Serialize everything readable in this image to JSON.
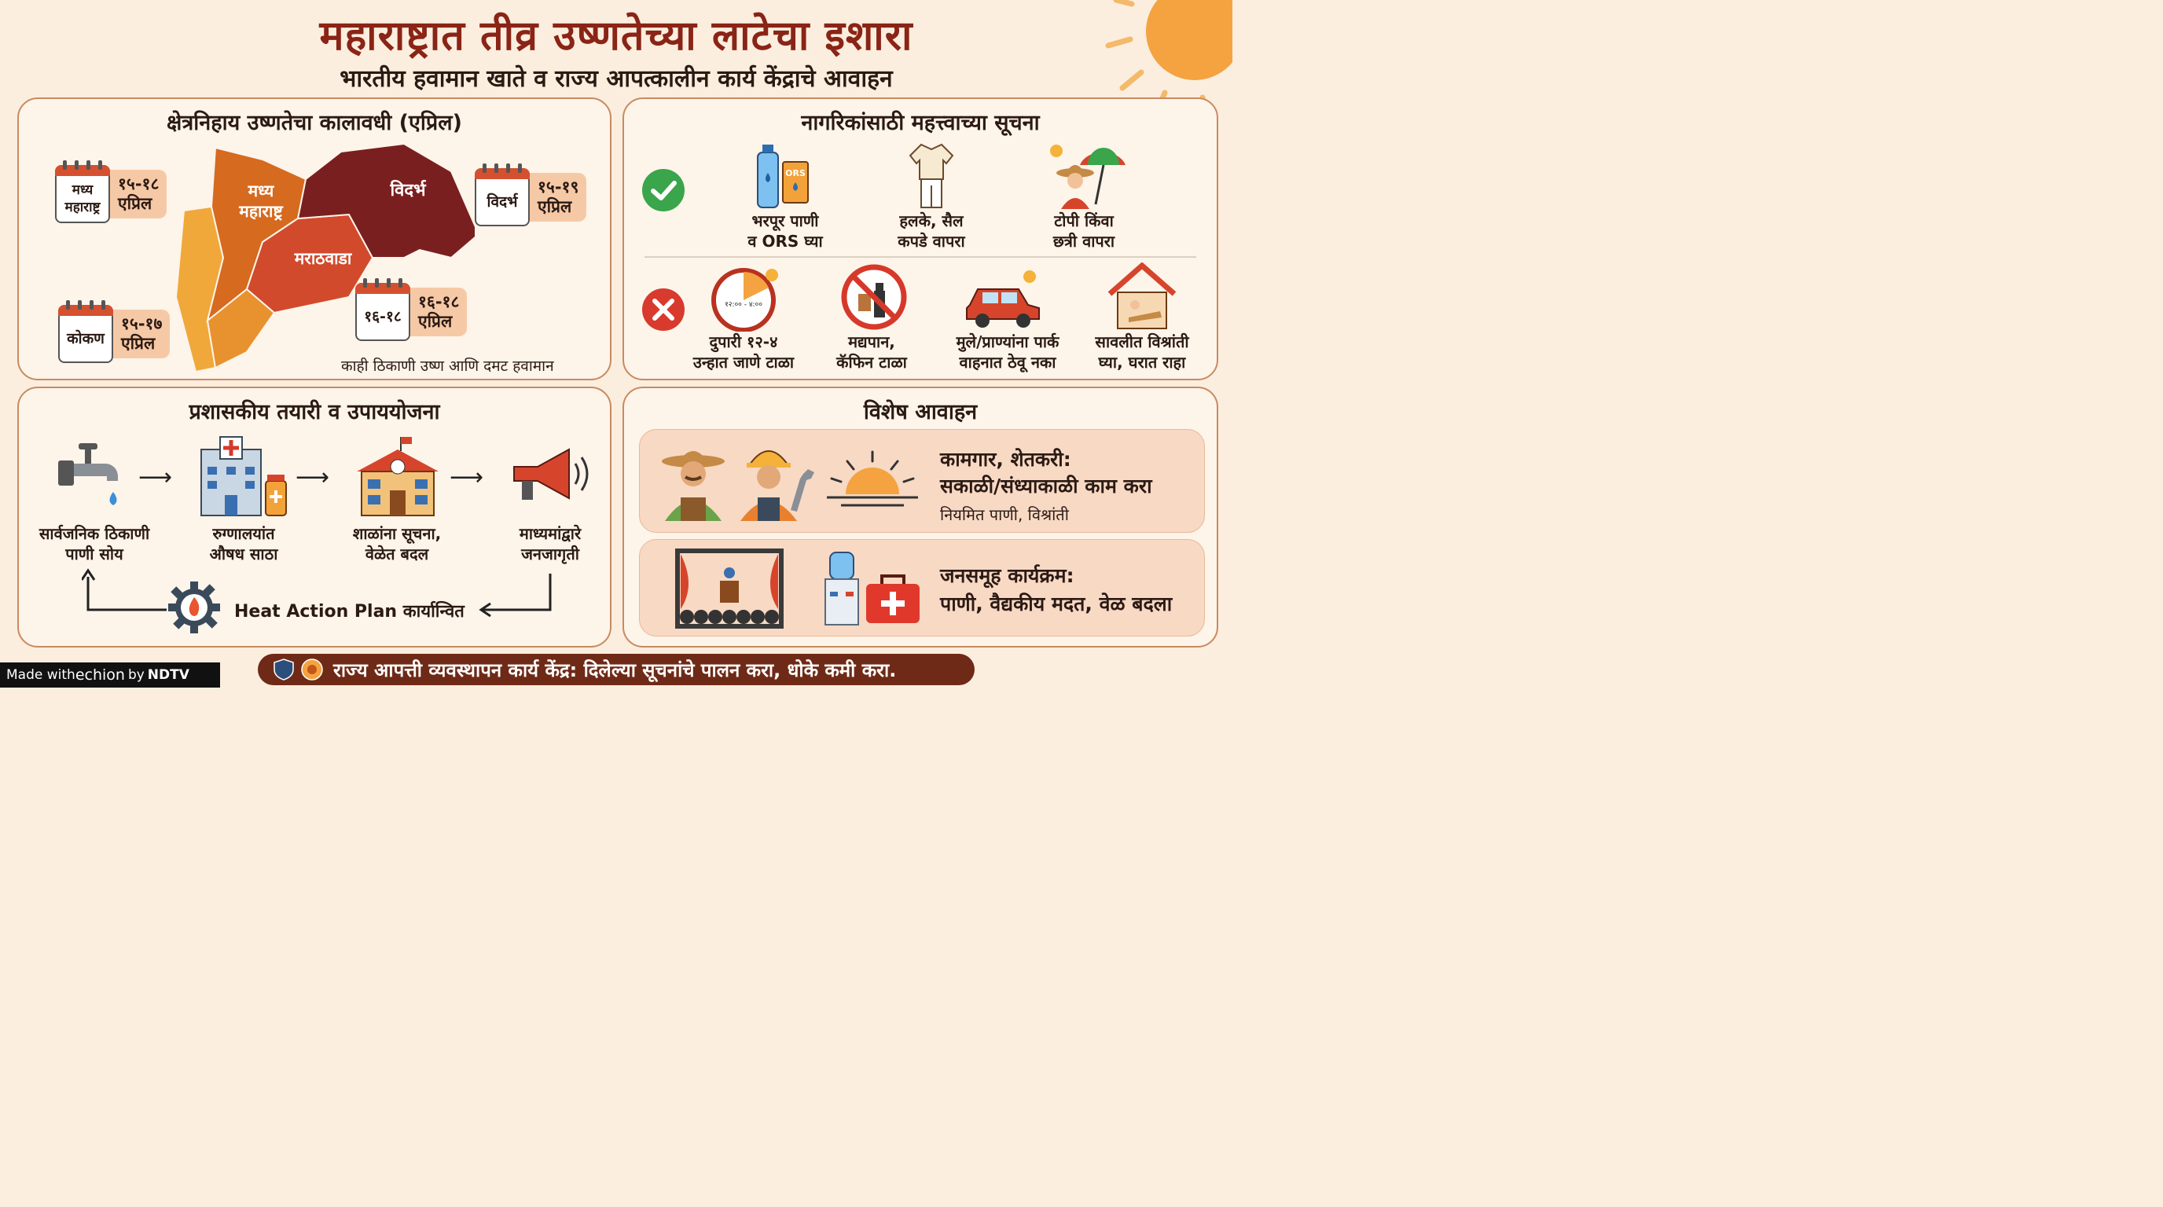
{
  "header": {
    "title": "महाराष्ट्रात तीव्र उष्णतेच्या लाटेचा इशारा",
    "subtitle": "भारतीय हवामान खाते व राज्य आपत्कालीन कार्य केंद्राचे आवाहन"
  },
  "regions_panel": {
    "heading": "क्षेत्रनिहाय उष्णतेचा कालावधी (एप्रिल)",
    "map_labels": {
      "madhya": "मध्य\nमहाराष्ट्र",
      "vidarbha": "विदर्भ",
      "marathwada": "मराठवाडा"
    },
    "calendars": [
      {
        "name": "मध्य महाराष्ट्र",
        "dates": "१५-१८\nएप्रिल"
      },
      {
        "name": "विदर्भ",
        "dates": "१५-१९\nएप्रिल"
      },
      {
        "name": "कोकण",
        "dates": "१५-१७\nएप्रिल"
      },
      {
        "name": "१६-१८",
        "dates": "१६-१८\nएप्रिल"
      }
    ],
    "note": "काही ठिकाणी उष्ण आणि दमट हवामान"
  },
  "citizens_panel": {
    "heading": "नागरिकांसाठी महत्त्वाच्या सूचना",
    "dos": [
      {
        "icon": "water-bottle-ors-icon",
        "label": "भरपूर पाणी\nव ORS घ्या"
      },
      {
        "icon": "light-clothes-icon",
        "label": "हलके, सैल\nकपडे वापरा"
      },
      {
        "icon": "hat-umbrella-icon",
        "label": "टोपी किंवा\nछत्री वापरा"
      }
    ],
    "donts": [
      {
        "icon": "clock-sun-icon",
        "label": "दुपारी १२-४\nउन्हात जाणे टाळा",
        "clock_text": "१२:०० - ४:००"
      },
      {
        "icon": "no-alcohol-caffeine-icon",
        "label": "मद्यपान,\nकॅफिन टाळा"
      },
      {
        "icon": "car-kids-pets-icon",
        "label": "मुले/प्राण्यांना पार्क\nवाहनात ठेवू नका"
      },
      {
        "icon": "house-rest-icon",
        "label": "सावलीत विश्रांती\nघ्या, घरात राहा"
      }
    ],
    "ors_text": "ORS"
  },
  "admin_panel": {
    "heading": "प्रशासकीय तयारी व उपाययोजना",
    "steps": [
      {
        "icon": "water-tap-icon",
        "label": "सार्वजनिक ठिकाणी\nपाणी सोय"
      },
      {
        "icon": "hospital-icon",
        "label": "रुग्णालयांत\nऔषध साठा"
      },
      {
        "icon": "school-icon",
        "label": "शाळांना सूचना,\nवेळेत बदल"
      },
      {
        "icon": "megaphone-icon",
        "label": "माध्यमांद्वारे\nजनजागृती"
      }
    ],
    "plan_label": "Heat Action Plan कार्यान्वित"
  },
  "special_panel": {
    "heading": "विशेष आवाहन",
    "workers": {
      "title": "कामगार, शेतकरी:",
      "line": "सकाळी/संध्याकाळी काम करा",
      "sub": "नियमित पाणी, विश्रांती"
    },
    "events": {
      "title": "जनसमूह कार्यक्रम:",
      "line": "पाणी, वैद्यकीय मदत, वेळ बदला"
    }
  },
  "footer": {
    "text": "राज्य आपत्ती व्यवस्थापन कार्य केंद्र: दिलेल्या सूचनांचे पालन करा, धोके कमी करा.",
    "made_with": "Made with ",
    "brand": "echion",
    "by": " by ",
    "ndtv": "NDTV"
  },
  "colors": {
    "title": "#8a2416",
    "panel_border": "#c98a60",
    "footer": "#6e2a16",
    "vidarbha": "#7a1f1f",
    "marathwada": "#d24a2c",
    "madhya": "#d66a1f",
    "konkan": "#f0a83a"
  }
}
